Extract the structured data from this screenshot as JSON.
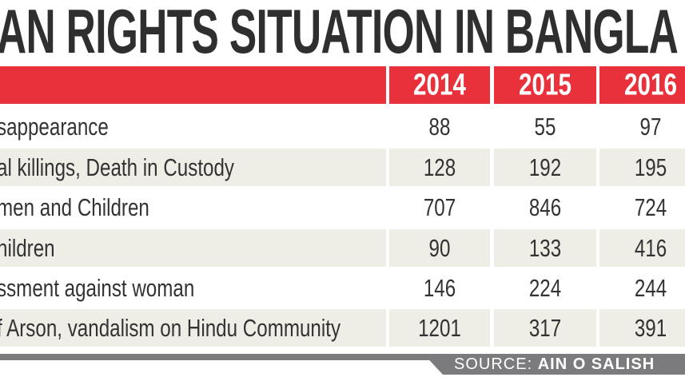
{
  "title": "AN RIGHTS SITUATION IN BANGLA",
  "chart_data": {
    "type": "table",
    "columns": [
      "2014",
      "2015",
      "2016"
    ],
    "rows": [
      {
        "label": "sappearance",
        "values": [
          "88",
          "55",
          "97"
        ]
      },
      {
        "label": "al killings, Death in Custody",
        "values": [
          "128",
          "192",
          "195"
        ]
      },
      {
        "label": "men and Children",
        "values": [
          "707",
          "846",
          "724"
        ]
      },
      {
        "label": "hildren",
        "values": [
          "90",
          "133",
          "416"
        ]
      },
      {
        "label": "ssment against woman",
        "values": [
          "146",
          "224",
          "244"
        ]
      },
      {
        "label": "f Arson, vandalism on Hindu Community",
        "values": [
          "1201",
          "317",
          "391"
        ]
      }
    ]
  },
  "source": {
    "prefix": "SOURCE: ",
    "name": "AIN O SALISH"
  },
  "colors": {
    "header": "#e8313a",
    "alt_row": "#eeede6",
    "source_bar": "#7b7b7d",
    "title": "#2f2f2f"
  }
}
